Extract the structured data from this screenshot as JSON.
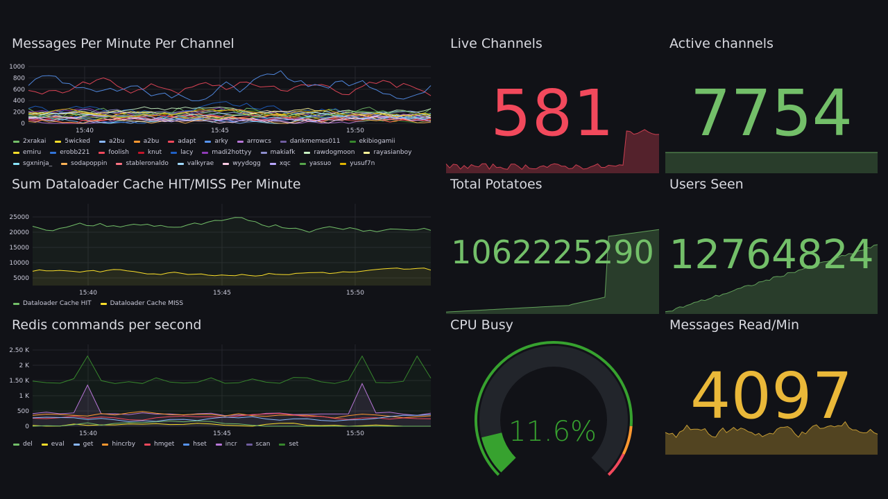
{
  "colors": {
    "background": "#111217",
    "green": "#73bf69",
    "red": "#f2495c",
    "yellow": "#fade2a",
    "gold": "#eab839",
    "orange": "#ff9830"
  },
  "mpm": {
    "title": "Messages Per Minute Per Channel",
    "y_ticks": [
      "1000",
      "800",
      "600",
      "400",
      "200",
      "0"
    ],
    "x_ticks": [
      "15:40",
      "15:45",
      "15:50"
    ],
    "legend": [
      {
        "name": "2xrakai",
        "color": "#73bf69"
      },
      {
        "name": "5wicked",
        "color": "#fade2a"
      },
      {
        "name": "a2bu",
        "color": "#8ab8ff"
      },
      {
        "name": "a2bu",
        "color": "#ff9830"
      },
      {
        "name": "adapt",
        "color": "#f2495c"
      },
      {
        "name": "arky",
        "color": "#5794f2"
      },
      {
        "name": "arrowcs",
        "color": "#b877d9"
      },
      {
        "name": "dankmemes011",
        "color": "#705da0"
      },
      {
        "name": "ekibiogamii",
        "color": "#37872d"
      },
      {
        "name": "emiru",
        "color": "#fade2a"
      },
      {
        "name": "erobb221",
        "color": "#3274d9"
      },
      {
        "name": "foolish",
        "color": "#f2495c"
      },
      {
        "name": "knut",
        "color": "#c4162a"
      },
      {
        "name": "lacy",
        "color": "#1f60c4"
      },
      {
        "name": "madi2hottyy",
        "color": "#8f3bb8"
      },
      {
        "name": "makiafk",
        "color": "#8e8ece"
      },
      {
        "name": "rawdogmoon",
        "color": "#c8f2c2"
      },
      {
        "name": "rayasianboy",
        "color": "#fff899"
      },
      {
        "name": "sgxninja_",
        "color": "#8ae6ff"
      },
      {
        "name": "sodapoppin",
        "color": "#ffb357"
      },
      {
        "name": "stableronaldo",
        "color": "#ff7383"
      },
      {
        "name": "valkyrae",
        "color": "#a0d9ff"
      },
      {
        "name": "wyydogg",
        "color": "#ffcce5"
      },
      {
        "name": "xqc",
        "color": "#b9a7ff"
      },
      {
        "name": "yassuo",
        "color": "#56a64b"
      },
      {
        "name": "yusuf7n",
        "color": "#e0b400"
      }
    ]
  },
  "cache": {
    "title": "Sum Dataloader Cache HIT/MISS Per Minute",
    "y_ticks": [
      "25000",
      "20000",
      "15000",
      "10000",
      "5000"
    ],
    "x_ticks": [
      "15:40",
      "15:45",
      "15:50"
    ],
    "legend": [
      {
        "name": "Dataloader Cache HIT",
        "color": "#73bf69"
      },
      {
        "name": "Dataloader Cache MISS",
        "color": "#fade2a"
      }
    ]
  },
  "redis": {
    "title": "Redis commands per second",
    "y_ticks": [
      "2.50 K",
      "2 K",
      "1.50 K",
      "1 K",
      "500",
      "0"
    ],
    "x_ticks": [
      "15:40",
      "15:45",
      "15:50"
    ],
    "legend": [
      {
        "name": "del",
        "color": "#73bf69"
      },
      {
        "name": "eval",
        "color": "#fade2a"
      },
      {
        "name": "get",
        "color": "#8ab8ff"
      },
      {
        "name": "hincrby",
        "color": "#ff9830"
      },
      {
        "name": "hmget",
        "color": "#f2495c"
      },
      {
        "name": "hset",
        "color": "#5794f2"
      },
      {
        "name": "incr",
        "color": "#b877d9"
      },
      {
        "name": "scan",
        "color": "#705da0"
      },
      {
        "name": "set",
        "color": "#37872d"
      }
    ]
  },
  "stats": {
    "live_channels": {
      "title": "Live Channels",
      "value": "581",
      "color": "#f2495c"
    },
    "active_channels": {
      "title": "Active channels",
      "value": "7754",
      "color": "#73bf69"
    },
    "total_potatoes": {
      "title": "Total Potatoes",
      "value": "1062225290",
      "color": "#73bf69"
    },
    "users_seen": {
      "title": "Users Seen",
      "value": "12764824",
      "color": "#73bf69"
    },
    "cpu_busy": {
      "title": "CPU Busy",
      "value": "11.6%",
      "percent": 11.6,
      "color": "#37a22f"
    },
    "messages_read": {
      "title": "Messages Read/Min",
      "value": "4097",
      "color": "#eab839"
    }
  }
}
